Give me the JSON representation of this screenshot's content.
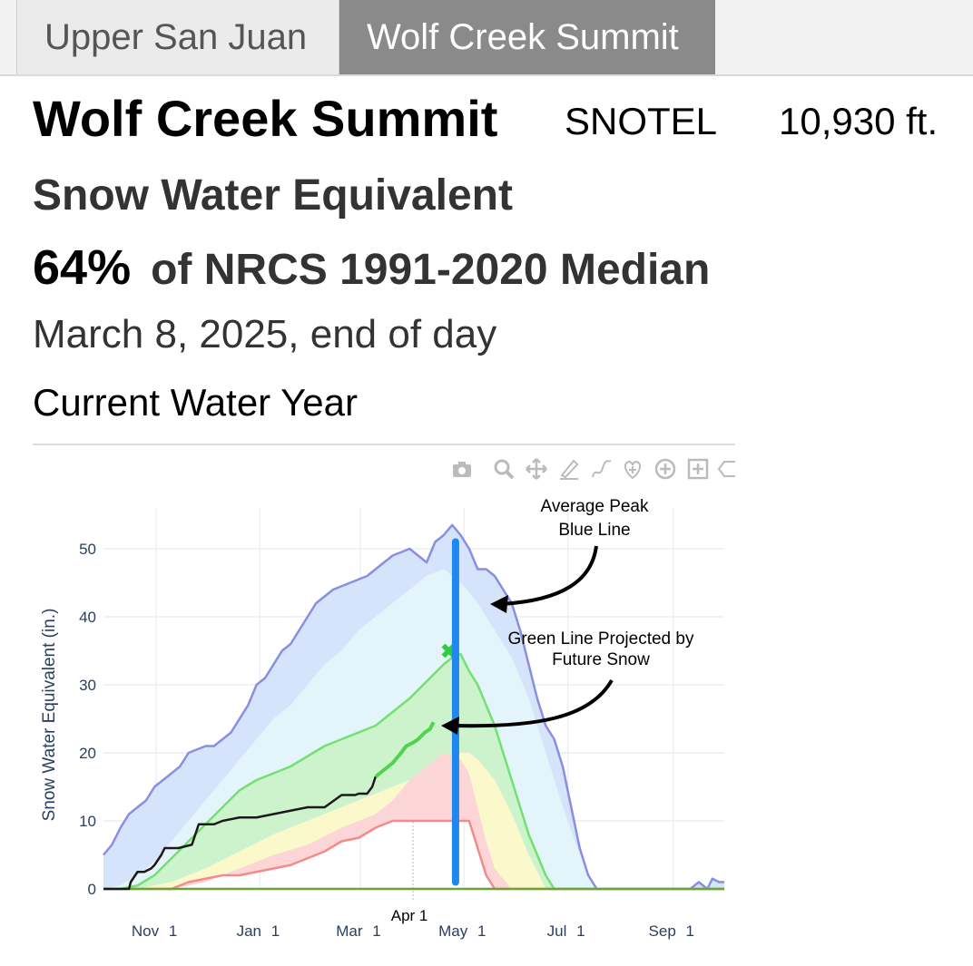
{
  "tabs": [
    {
      "label": "Upper San Juan",
      "active": false
    },
    {
      "label": "Wolf Creek Summit",
      "active": true
    }
  ],
  "header": {
    "station_name": "Wolf Creek Summit",
    "network": "SNOTEL",
    "elevation": "10,930 ft.",
    "measure": "Snow Water Equivalent",
    "percent": "64%",
    "percent_label": "of NRCS 1991-2020 Median",
    "date": "March 8, 2025, end of day",
    "subtitle": "Current Water Year"
  },
  "modebar": {
    "icons": [
      "camera-icon",
      "zoom-icon",
      "pan-icon",
      "draw-line-icon",
      "draw-freeform-icon",
      "lasso-icon",
      "zoom-in-icon",
      "zoom-box-icon",
      "reset-icon"
    ]
  },
  "colors": {
    "max_line": "#8a8ee0",
    "max_band": "#d5e4fb",
    "upper_band": "#e4f4fb",
    "mid_band": "#cdf3cd",
    "lower_band": "#fbf9cc",
    "min_band": "#fcd6d6",
    "median": "#72e072",
    "min_line": "#f08c8c",
    "current": "#1a1a1a",
    "projection": "#4fd44f",
    "peak_marker": "#2ecc40",
    "peak_line": "#1f87ee"
  },
  "chart_data": {
    "type": "area",
    "ylabel": "Snow Water Equivalent (in.)",
    "ylim": [
      0,
      56
    ],
    "y_ticks": [
      0,
      10,
      20,
      30,
      40,
      50
    ],
    "x_ticks": [
      {
        "label": "Nov 1",
        "day": 31
      },
      {
        "label": "Jan 1",
        "day": 92
      },
      {
        "label": "Mar 1",
        "day": 151
      },
      {
        "label": "May 1",
        "day": 212
      },
      {
        "label": "Jul 1",
        "day": 273
      },
      {
        "label": "Sep 1",
        "day": 335
      }
    ],
    "xlim": [
      0,
      365
    ],
    "vertical_marker_label": "Apr 1",
    "vertical_marker_day": 182,
    "grid": true,
    "series": [
      {
        "key": "max",
        "x": [
          0,
          5,
          10,
          15,
          20,
          25,
          30,
          35,
          40,
          45,
          50,
          55,
          60,
          65,
          70,
          75,
          80,
          85,
          90,
          95,
          100,
          105,
          110,
          115,
          120,
          125,
          130,
          135,
          140,
          145,
          150,
          155,
          160,
          165,
          170,
          175,
          180,
          185,
          190,
          195,
          200,
          205,
          210,
          215,
          220,
          225,
          230,
          235,
          240,
          245,
          250,
          255,
          260,
          265,
          270,
          275,
          280,
          285,
          290,
          295,
          300,
          305,
          310,
          320,
          330,
          340,
          345,
          350,
          355,
          358,
          362,
          365
        ],
        "y": [
          5,
          6.5,
          9,
          11,
          12,
          13,
          15,
          16,
          17,
          18,
          20,
          20.5,
          21,
          21,
          22,
          23,
          25,
          27,
          30,
          31,
          33,
          35,
          36,
          38,
          40,
          42,
          43,
          44,
          44.5,
          45,
          45.5,
          46,
          47,
          48,
          49,
          49.5,
          50,
          49,
          48,
          51,
          52,
          53.5,
          52,
          50,
          47,
          47,
          46,
          44,
          42,
          38,
          33,
          28,
          24,
          22,
          18,
          12,
          6,
          2,
          0,
          0,
          0,
          0,
          0,
          0,
          0,
          0,
          0,
          1,
          0,
          1.5,
          1,
          1
        ]
      },
      {
        "key": "p90",
        "x": [
          0,
          10,
          20,
          30,
          40,
          50,
          60,
          70,
          80,
          90,
          100,
          110,
          120,
          130,
          140,
          150,
          160,
          170,
          180,
          190,
          200,
          210,
          220,
          230,
          240,
          250,
          260,
          270,
          280,
          290,
          300,
          365
        ],
        "y": [
          0,
          0.5,
          2,
          4,
          7,
          10,
          13,
          16,
          19,
          22,
          25,
          27,
          30,
          33,
          35,
          38,
          40,
          42,
          44,
          46,
          47,
          45,
          42,
          38,
          34,
          28,
          20,
          12,
          5,
          0,
          0,
          0
        ]
      },
      {
        "key": "median",
        "x": [
          0,
          10,
          20,
          30,
          40,
          50,
          60,
          70,
          80,
          90,
          100,
          110,
          120,
          130,
          140,
          150,
          160,
          170,
          180,
          190,
          200,
          205,
          210,
          215,
          220,
          230,
          240,
          250,
          260,
          265,
          270,
          280,
          290,
          365
        ],
        "y": [
          0,
          0,
          0.5,
          2,
          4.5,
          7,
          9.5,
          12,
          14.5,
          16,
          17,
          18,
          19.5,
          21,
          22,
          23,
          24,
          26,
          28,
          30.5,
          33,
          34,
          34.5,
          32,
          30,
          24,
          16,
          8,
          2,
          0,
          0,
          0,
          0,
          0
        ]
      },
      {
        "key": "p30",
        "x": [
          0,
          20,
          40,
          60,
          80,
          100,
          120,
          140,
          160,
          180,
          190,
          200,
          210,
          215,
          220,
          230,
          240,
          250,
          260,
          270,
          365
        ],
        "y": [
          0,
          0,
          1,
          3,
          5.5,
          8,
          10,
          12,
          14,
          16,
          17.5,
          19,
          20,
          20,
          19,
          16,
          11,
          5,
          0,
          0,
          0
        ]
      },
      {
        "key": "p10",
        "x": [
          0,
          20,
          40,
          60,
          80,
          100,
          120,
          140,
          160,
          170,
          180,
          190,
          200,
          210,
          215,
          220,
          225,
          230,
          240,
          250,
          365
        ],
        "y": [
          0,
          0,
          0,
          1,
          3,
          5,
          6.5,
          9,
          11,
          13,
          16,
          18,
          20,
          19,
          17,
          12,
          7,
          3,
          0,
          0,
          0
        ]
      },
      {
        "key": "min",
        "x": [
          0,
          40,
          50,
          60,
          70,
          80,
          90,
          100,
          110,
          120,
          130,
          140,
          150,
          160,
          170,
          180,
          190,
          200,
          210,
          215,
          220,
          225,
          230,
          235,
          365
        ],
        "y": [
          0,
          0,
          1,
          1.5,
          2,
          2,
          2.5,
          3,
          3.5,
          4.5,
          5.5,
          7,
          7.5,
          9,
          10,
          10,
          10,
          10,
          10,
          10,
          6,
          2,
          0,
          0,
          0
        ]
      },
      {
        "key": "current",
        "x": [
          0,
          15,
          16,
          20,
          24,
          28,
          30,
          34,
          36,
          40,
          44,
          52,
          56,
          60,
          65,
          70,
          80,
          90,
          100,
          110,
          120,
          130,
          140,
          145,
          148,
          150,
          155,
          158,
          160
        ],
        "y": [
          0,
          0,
          1,
          2.5,
          2.5,
          3,
          3.5,
          5,
          6,
          6,
          6,
          6.5,
          9.5,
          9.5,
          9.5,
          10,
          10.5,
          10.5,
          11,
          11.5,
          12,
          12,
          13.8,
          13.8,
          13.8,
          14,
          14,
          15,
          16.5
        ]
      },
      {
        "key": "projection",
        "x": [
          160,
          165,
          170,
          175,
          178,
          182,
          185,
          189,
          192,
          194
        ],
        "y": [
          16.5,
          17.5,
          18.5,
          20,
          21,
          21.5,
          22,
          23,
          23.5,
          24.5
        ]
      }
    ],
    "projected_peak": {
      "x": 203,
      "y": 35
    },
    "average_peak_day": 207,
    "average_peak_range": [
      1,
      51
    ]
  },
  "annotations": {
    "avg_peak": [
      "Average Peak",
      "Blue Line"
    ],
    "green_line": [
      "Green Line Projected by",
      "Future Snow"
    ]
  }
}
